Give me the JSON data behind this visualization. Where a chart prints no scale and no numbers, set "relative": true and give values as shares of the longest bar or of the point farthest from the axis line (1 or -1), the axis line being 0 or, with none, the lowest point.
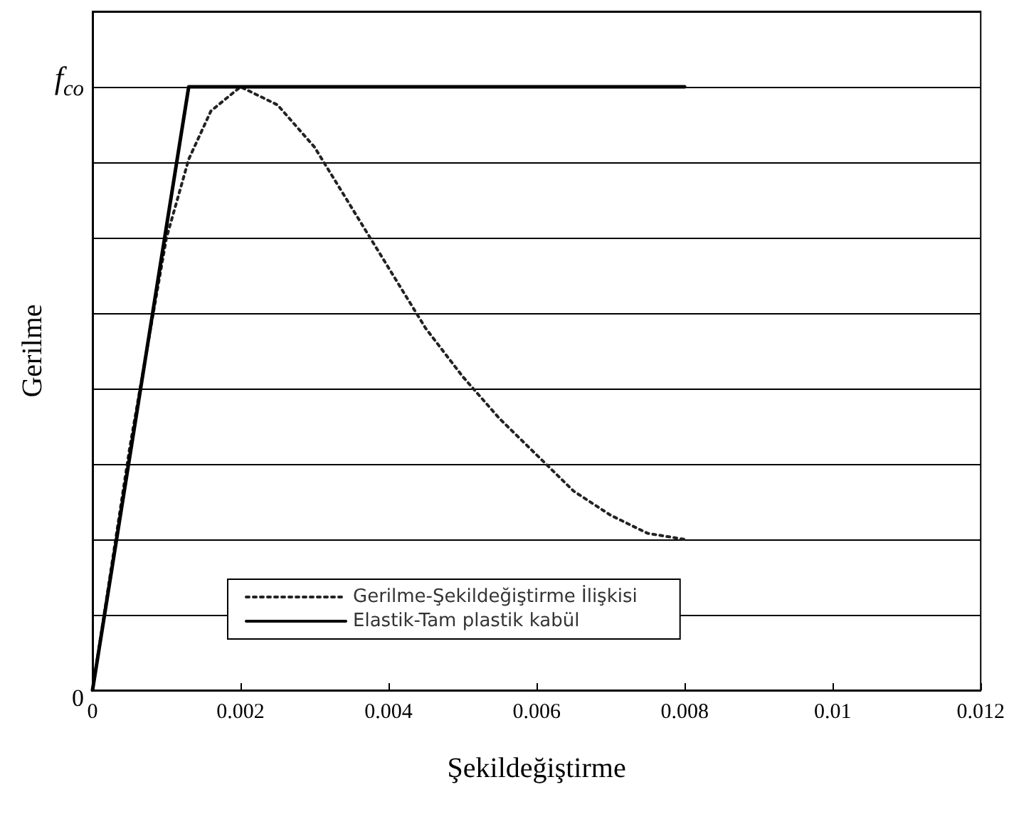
{
  "chart_data": {
    "type": "line",
    "xlabel": "Şekildeğiştirme",
    "ylabel": "Gerilme",
    "xlim": [
      0,
      0.012
    ],
    "xticks": [
      0,
      0.002,
      0.004,
      0.006,
      0.008,
      0.01,
      0.012
    ],
    "relative": true,
    "annotations": [
      "f$_{co}$",
      "0"
    ],
    "grid": "y",
    "legend": "bottom",
    "marker": "none",
    "series": [
      {
        "name": "Gerilme-Şekildeğiştirme İlişkisi",
        "color": "#222222",
        "line_style": "dotted",
        "x": [
          0,
          0.0005,
          0.001,
          0.0013,
          0.0016,
          0.002,
          0.0025,
          0.003,
          0.0035,
          0.004,
          0.0045,
          0.005,
          0.0055,
          0.006,
          0.0065,
          0.007,
          0.0075,
          0.008
        ],
        "values": [
          0,
          0.4,
          0.75,
          0.88,
          0.96,
          1.0,
          0.97,
          0.9,
          0.8,
          0.7,
          0.6,
          0.52,
          0.45,
          0.39,
          0.33,
          0.29,
          0.26,
          0.25
        ]
      },
      {
        "name": "Elastik-Tam plastik kabül",
        "color": "#000000",
        "line_style": "solid",
        "x": [
          0,
          0.0013,
          0.008
        ],
        "values": [
          0,
          1,
          1
        ]
      }
    ]
  }
}
